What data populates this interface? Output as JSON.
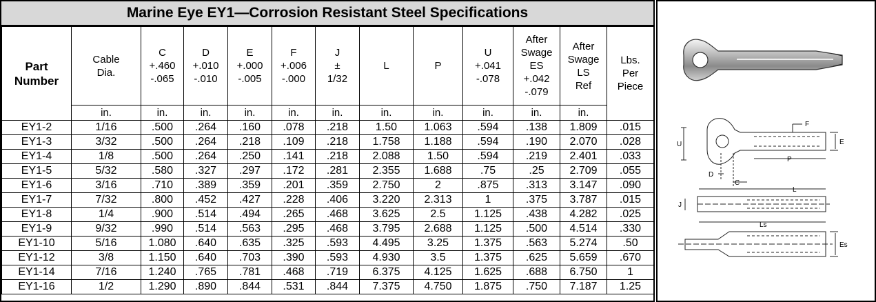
{
  "title": "Marine Eye EY1—Corrosion Resistant Steel Specifications",
  "columns": [
    {
      "label": "Part\nNumber",
      "unit": ""
    },
    {
      "label": "Cable\nDia.",
      "unit": "in."
    },
    {
      "label": "C\n+.460\n-.065",
      "unit": "in."
    },
    {
      "label": "D\n+.010\n-.010",
      "unit": "in."
    },
    {
      "label": "E\n+.000\n-.005",
      "unit": "in."
    },
    {
      "label": "F\n+.006\n-.000",
      "unit": "in."
    },
    {
      "label": "J\n±\n1/32",
      "unit": "in."
    },
    {
      "label": "L",
      "unit": "in."
    },
    {
      "label": "P",
      "unit": "in."
    },
    {
      "label": "U\n+.041\n-.078",
      "unit": "in."
    },
    {
      "label": "After\nSwage\nES\n+.042\n-.079",
      "unit": "in."
    },
    {
      "label": "After\nSwage\nLS\nRef",
      "unit": "in."
    },
    {
      "label": "Lbs.\nPer\nPiece",
      "unit": ""
    }
  ],
  "rows": [
    [
      "EY1-2",
      "1/16",
      ".500",
      ".264",
      ".160",
      ".078",
      ".218",
      "1.50",
      "1.063",
      ".594",
      ".138",
      "1.809",
      ".015"
    ],
    [
      "EY1-3",
      "3/32",
      ".500",
      ".264",
      ".218",
      ".109",
      ".218",
      "1.758",
      "1.188",
      ".594",
      ".190",
      "2.070",
      ".028"
    ],
    [
      "EY1-4",
      "1/8",
      ".500",
      ".264",
      ".250",
      ".141",
      ".218",
      "2.088",
      "1.50",
      ".594",
      ".219",
      "2.401",
      ".033"
    ],
    [
      "EY1-5",
      "5/32",
      ".580",
      ".327",
      ".297",
      ".172",
      ".281",
      "2.355",
      "1.688",
      ".75",
      ".25",
      "2.709",
      ".055"
    ],
    [
      "EY1-6",
      "3/16",
      ".710",
      ".389",
      ".359",
      ".201",
      ".359",
      "2.750",
      "2",
      ".875",
      ".313",
      "3.147",
      ".090"
    ],
    [
      "EY1-7",
      "7/32",
      ".800",
      ".452",
      ".427",
      ".228",
      ".406",
      "3.220",
      "2.313",
      "1",
      ".375",
      "3.787",
      ".015"
    ],
    [
      "EY1-8",
      "1/4",
      ".900",
      ".514",
      ".494",
      ".265",
      ".468",
      "3.625",
      "2.5",
      "1.125",
      ".438",
      "4.282",
      ".025"
    ],
    [
      "EY1-9",
      "9/32",
      ".990",
      ".514",
      ".563",
      ".295",
      ".468",
      "3.795",
      "2.688",
      "1.125",
      ".500",
      "4.514",
      ".330"
    ],
    [
      "EY1-10",
      "5/16",
      "1.080",
      ".640",
      ".635",
      ".325",
      ".593",
      "4.495",
      "3.25",
      "1.375",
      ".563",
      "5.274",
      ".50"
    ],
    [
      "EY1-12",
      "3/8",
      "1.150",
      ".640",
      ".703",
      ".390",
      ".593",
      "4.930",
      "3.5",
      "1.375",
      ".625",
      "5.659",
      ".670"
    ],
    [
      "EY1-14",
      "7/16",
      "1.240",
      ".765",
      ".781",
      ".468",
      ".719",
      "6.375",
      "4.125",
      "1.625",
      ".688",
      "6.750",
      "1"
    ],
    [
      "EY1-16",
      "1/2",
      "1.290",
      ".890",
      ".844",
      ".531",
      ".844",
      "7.375",
      "4.750",
      "1.875",
      ".750",
      "7.187",
      "1.25"
    ]
  ],
  "diagram": {
    "labels": {
      "F": "F",
      "U": "U",
      "E": "E",
      "P": "P",
      "D": "D",
      "C": "C",
      "L": "L",
      "J": "J",
      "Ls": "Ls",
      "Es": "Es"
    }
  }
}
